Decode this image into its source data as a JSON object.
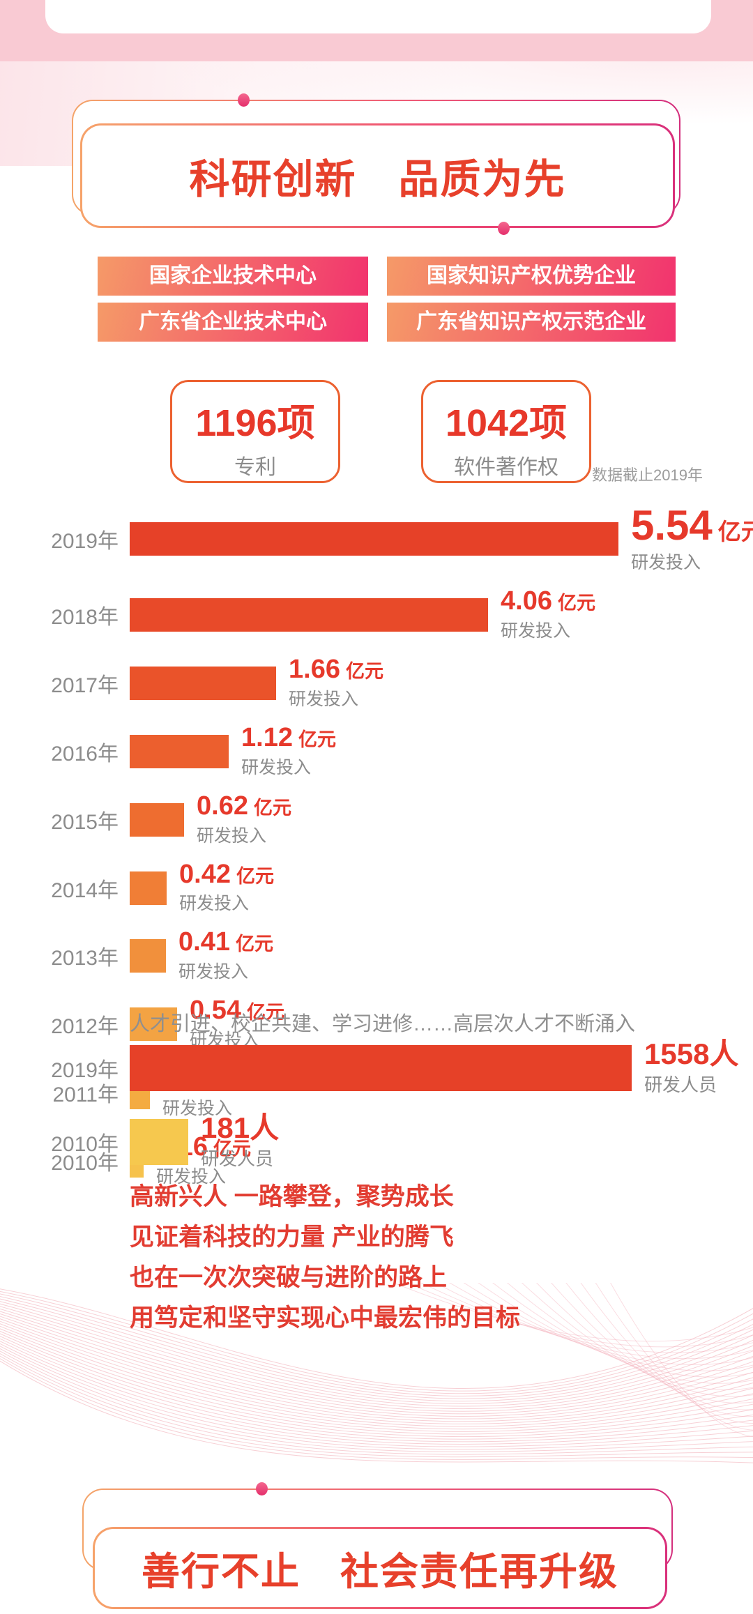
{
  "title_banner": {
    "title": "科研创新　品质为先"
  },
  "badges": [
    "国家企业技术中心",
    "国家知识产权优势企业",
    "广东省企业技术中心",
    "广东省知识产权示范企业"
  ],
  "stats": [
    {
      "value": "1196项",
      "label": "专利"
    },
    {
      "value": "1042项",
      "label": "软件著作权"
    }
  ],
  "data_note": "数据截止2019年",
  "chart_data": [
    {
      "type": "bar",
      "orientation": "horizontal",
      "title": "",
      "categories": [
        "2019年",
        "2018年",
        "2017年",
        "2016年",
        "2015年",
        "2014年",
        "2013年",
        "2012年",
        "2011年",
        "2010年"
      ],
      "values": [
        5.54,
        4.06,
        1.66,
        1.12,
        0.62,
        0.42,
        0.41,
        0.54,
        0.23,
        0.16
      ],
      "unit": "亿元",
      "series_label": "研发投入",
      "xlim": [
        0,
        5.54
      ],
      "grid": false,
      "legend": "none",
      "bar_colors": [
        "#e64128",
        "#e84a29",
        "#ea532a",
        "#ec5f2e",
        "#ee6d30",
        "#f07e36",
        "#f1903c",
        "#f3a343",
        "#f4ab41",
        "#f6c24c"
      ]
    },
    {
      "type": "bar",
      "orientation": "horizontal",
      "title": "",
      "categories": [
        "2019年",
        "2010年"
      ],
      "values": [
        1558,
        181
      ],
      "unit": "人",
      "series_label": "研发人员",
      "xlim": [
        0,
        1558
      ],
      "grid": false,
      "legend": "none",
      "bar_colors": [
        "#e64128",
        "#f6c84e"
      ]
    }
  ],
  "talent_line": "人才引进、校企共建、学习进修……高层次人才不断涌入",
  "slogan_lines": [
    "高新兴人 一路攀登，聚势成长",
    "见证着科技的力量 产业的腾飞",
    "也在一次次突破与进阶的路上",
    "用笃定和坚守实现心中最宏伟的目标"
  ],
  "footer_banner": {
    "title": "善行不止　社会责任再升级"
  },
  "colors": {
    "accent_red": "#e6392b",
    "pink_band": "#f9cad3",
    "badge_gradient_start": "#f59a68",
    "badge_gradient_end": "#f2336e",
    "banner_border_start": "#f6a36a",
    "banner_border_end": "#d9307b",
    "stat_border": "#ec6130",
    "gray_text": "#8c8c8c"
  }
}
